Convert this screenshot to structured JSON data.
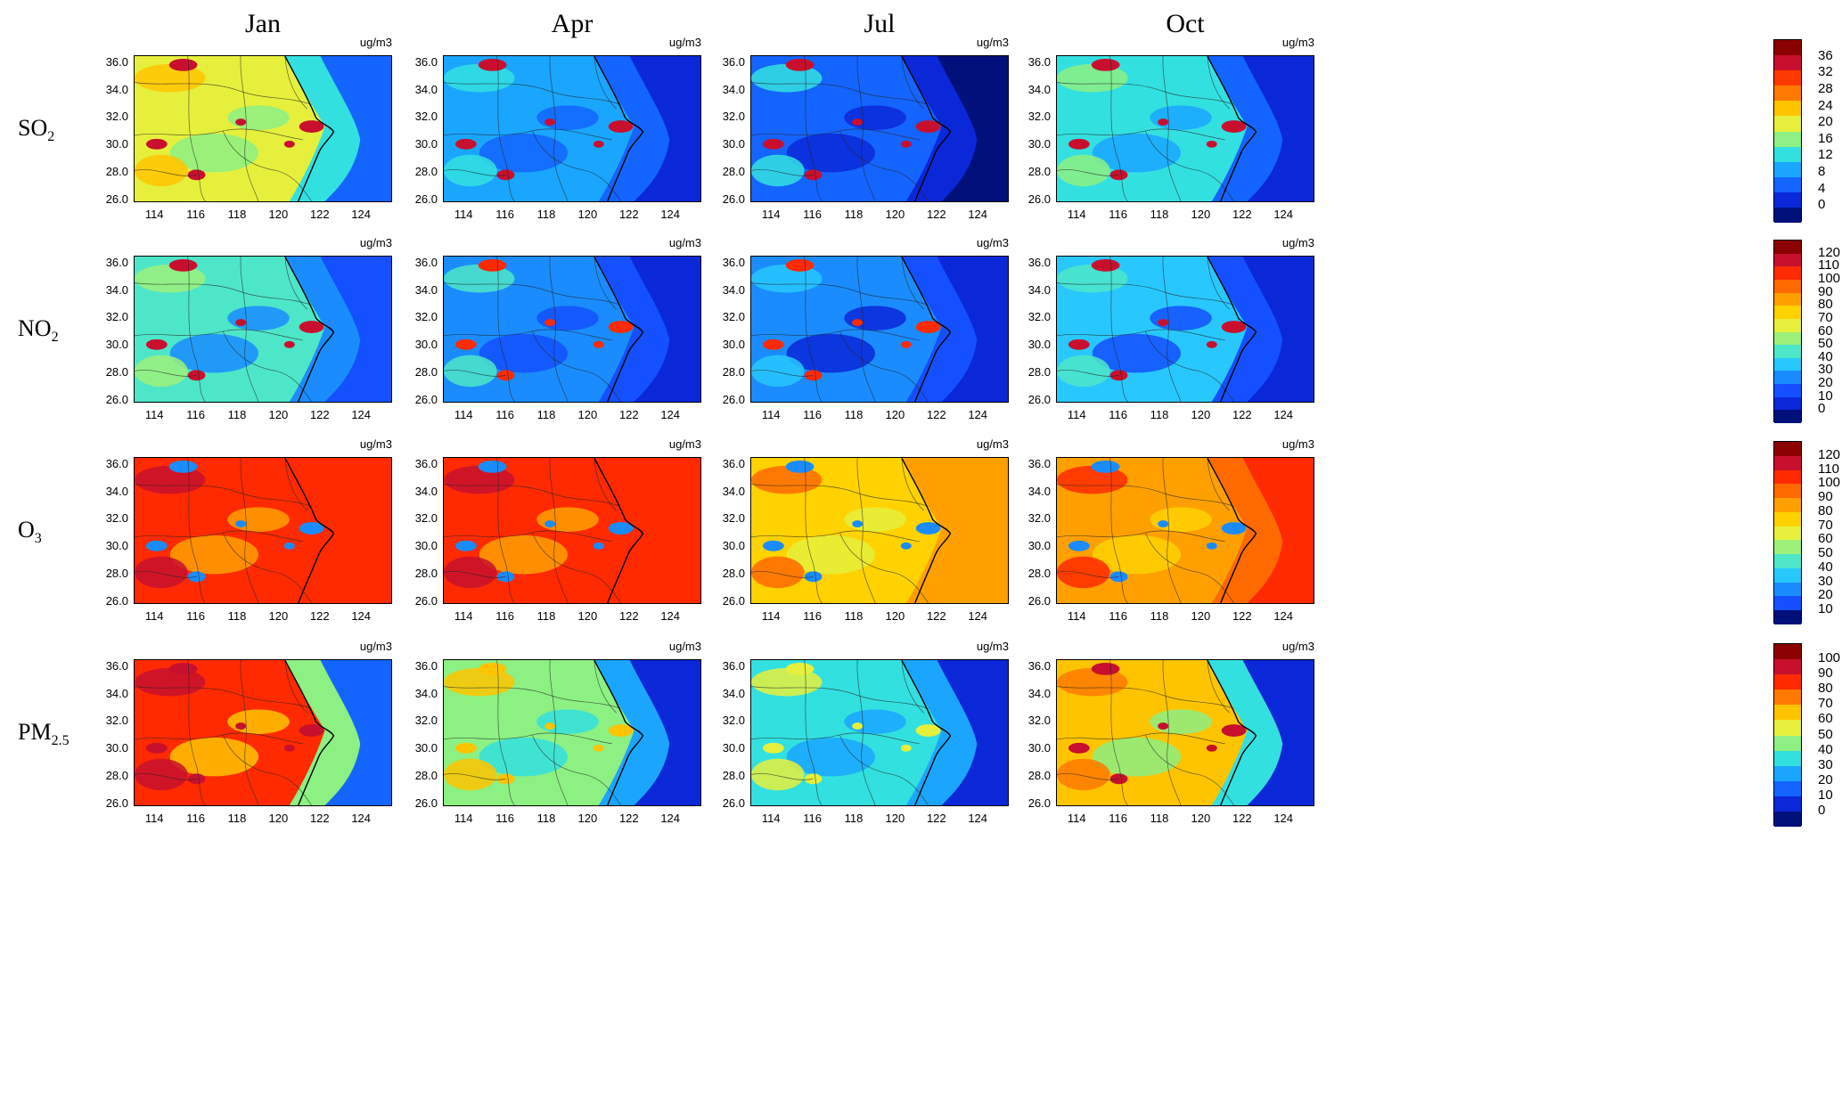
{
  "months": [
    "Jan",
    "Apr",
    "Jul",
    "Oct"
  ],
  "unit_label": "ug/m3",
  "map_axes": {
    "lat_ticks": [
      "36.0",
      "34.0",
      "32.0",
      "30.0",
      "28.0",
      "26.0"
    ],
    "lon_ticks": [
      "114",
      "116",
      "118",
      "120",
      "122",
      "124"
    ],
    "lat_range": [
      25.8,
      36.5
    ],
    "lon_range": [
      113.0,
      125.5
    ]
  },
  "pollutants": [
    {
      "name": "SO",
      "subscript": "2",
      "colorbar_ticks": [
        "36",
        "32",
        "28",
        "24",
        "20",
        "16",
        "12",
        "8",
        "4",
        "0"
      ],
      "colorbar_colors": [
        "#8b0000",
        "#c8102e",
        "#ff3a00",
        "#ff7a00",
        "#ffc400",
        "#e6f03c",
        "#8cf082",
        "#33e0e0",
        "#1aa6ff",
        "#1464ff",
        "#0a28d8",
        "#00107a"
      ],
      "panels": [
        {
          "month": "Jan",
          "land_level": 0.55,
          "ocean_level": 0.15,
          "hotspot_level": 0.95
        },
        {
          "month": "Apr",
          "land_level": 0.28,
          "ocean_level": 0.05,
          "hotspot_level": 0.9
        },
        {
          "month": "Jul",
          "land_level": 0.22,
          "ocean_level": 0.04,
          "hotspot_level": 0.88
        },
        {
          "month": "Oct",
          "land_level": 0.35,
          "ocean_level": 0.05,
          "hotspot_level": 0.95
        }
      ]
    },
    {
      "name": "NO",
      "subscript": "2",
      "colorbar_ticks": [
        "120",
        "110",
        "100",
        "90",
        "80",
        "70",
        "60",
        "50",
        "40",
        "30",
        "20",
        "10",
        "0"
      ],
      "colorbar_colors": [
        "#8b0000",
        "#c8102e",
        "#ff2a00",
        "#ff6a00",
        "#ffa000",
        "#ffd200",
        "#e6f03c",
        "#9cf07a",
        "#4ee6c8",
        "#28c8ff",
        "#1a8cff",
        "#1450ff",
        "#0a28d8",
        "#00107a"
      ],
      "panels": [
        {
          "month": "Jan",
          "land_level": 0.38,
          "ocean_level": 0.12,
          "hotspot_level": 0.9
        },
        {
          "month": "Apr",
          "land_level": 0.24,
          "ocean_level": 0.05,
          "hotspot_level": 0.85
        },
        {
          "month": "Jul",
          "land_level": 0.22,
          "ocean_level": 0.05,
          "hotspot_level": 0.85
        },
        {
          "month": "Oct",
          "land_level": 0.3,
          "ocean_level": 0.06,
          "hotspot_level": 0.9
        }
      ]
    },
    {
      "name": "O",
      "subscript": "3",
      "colorbar_ticks": [
        "120",
        "110",
        "100",
        "90",
        "80",
        "70",
        "60",
        "50",
        "40",
        "30",
        "20",
        "10"
      ],
      "colorbar_colors": [
        "#8b0000",
        "#c8102e",
        "#ff2a00",
        "#ff6a00",
        "#ffa000",
        "#ffd200",
        "#e6f03c",
        "#9cf07a",
        "#4ee6c8",
        "#28c8ff",
        "#1a8cff",
        "#1450ff",
        "#00107a"
      ],
      "panels": [
        {
          "month": "Jan",
          "land_level": 0.8,
          "ocean_level": 0.85,
          "hotspot_level": 0.2
        },
        {
          "month": "Apr",
          "land_level": 0.8,
          "ocean_level": 0.86,
          "hotspot_level": 0.2
        },
        {
          "month": "Jul",
          "land_level": 0.62,
          "ocean_level": 0.7,
          "hotspot_level": 0.18
        },
        {
          "month": "Oct",
          "land_level": 0.7,
          "ocean_level": 0.85,
          "hotspot_level": 0.18
        }
      ]
    },
    {
      "name": "PM",
      "subscript": "2.5",
      "colorbar_ticks": [
        "100",
        "90",
        "80",
        "70",
        "60",
        "50",
        "40",
        "30",
        "20",
        "10",
        "0"
      ],
      "colorbar_colors": [
        "#8b0000",
        "#c8102e",
        "#ff2a00",
        "#ff7a00",
        "#ffc400",
        "#e6f03c",
        "#8cf082",
        "#33e0e0",
        "#1aa6ff",
        "#1464ff",
        "#0a28d8",
        "#00107a"
      ],
      "panels": [
        {
          "month": "Jan",
          "land_level": 0.8,
          "ocean_level": 0.2,
          "hotspot_level": 0.95
        },
        {
          "month": "Apr",
          "land_level": 0.5,
          "ocean_level": 0.12,
          "hotspot_level": 0.6
        },
        {
          "month": "Jul",
          "land_level": 0.4,
          "ocean_level": 0.06,
          "hotspot_level": 0.55
        },
        {
          "month": "Oct",
          "land_level": 0.6,
          "ocean_level": 0.12,
          "hotspot_level": 0.9
        }
      ]
    }
  ]
}
